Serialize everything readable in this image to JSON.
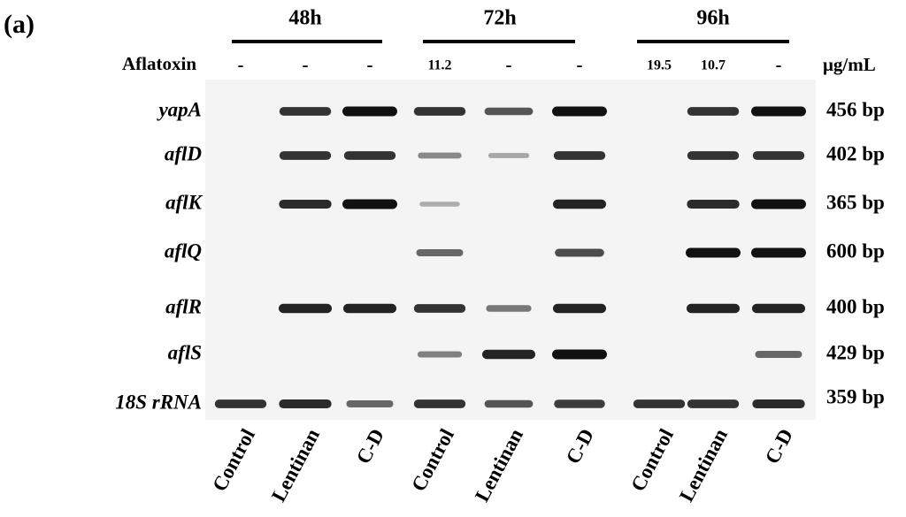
{
  "panel_label": "(a)",
  "groups": [
    {
      "label": "48h"
    },
    {
      "label": "72h"
    },
    {
      "label": "96h"
    }
  ],
  "aflatoxin": {
    "label": "Aflatoxin",
    "values": [
      "-",
      "-",
      "-",
      "11.2",
      "-",
      "-",
      "19.5",
      "10.7",
      "-"
    ],
    "unit": "μg/mL"
  },
  "rows": [
    {
      "gene": "yapA",
      "size": "456 bp"
    },
    {
      "gene": "aflD",
      "size": "402 bp"
    },
    {
      "gene": "aflK",
      "size": "365 bp"
    },
    {
      "gene": "aflQ",
      "size": "600 bp"
    },
    {
      "gene": "aflR",
      "size": "400 bp"
    },
    {
      "gene": "aflS",
      "size": "429 bp"
    },
    {
      "gene": "18S rRNA",
      "size": "359 bp"
    }
  ],
  "lanes": [
    {
      "label": "Control"
    },
    {
      "label": "Lentinan"
    },
    {
      "label": "C-D"
    },
    {
      "label": "Control"
    },
    {
      "label": "Lentinan"
    },
    {
      "label": "C-D"
    },
    {
      "label": "Control"
    },
    {
      "label": "Lentinan"
    },
    {
      "label": "C-D"
    }
  ]
}
